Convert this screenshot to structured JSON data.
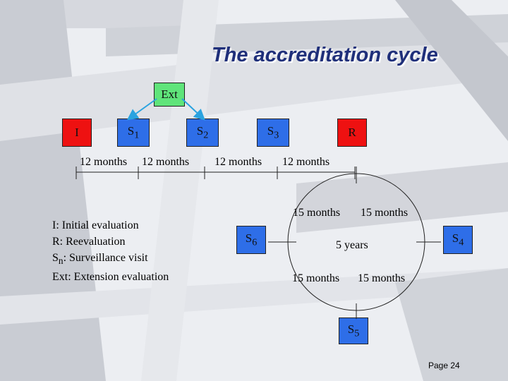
{
  "title": "The accreditation cycle",
  "boxes": {
    "ext": "Ext",
    "i": "I",
    "r": "R",
    "s1": {
      "base": "S",
      "sub": "1"
    },
    "s2": {
      "base": "S",
      "sub": "2"
    },
    "s3": {
      "base": "S",
      "sub": "3"
    },
    "s4": {
      "base": "S",
      "sub": "4"
    },
    "s5": {
      "base": "S",
      "sub": "5"
    },
    "s6": {
      "base": "S",
      "sub": "6"
    }
  },
  "timeline": [
    "12 months",
    "12 months",
    "12 months",
    "12 months"
  ],
  "circle": {
    "top_left": "15 months",
    "top_right": "15 months",
    "bottom_left": "15 months",
    "bottom_right": "15 months",
    "center": "5 years"
  },
  "legend": {
    "i": "I: Initial evaluation",
    "r": "R: Reevaluation",
    "sn_base": "S",
    "sn_sub": "n",
    "sn_rest": ": Surveillance visit",
    "ext": "Ext: Extension evaluation"
  },
  "page": "Page 24",
  "colors": {
    "red": "#ee1111",
    "blue": "#2e6ee8",
    "green": "#5fe47a",
    "title": "#1f2f7a",
    "arrow": "#2aa3e0"
  }
}
